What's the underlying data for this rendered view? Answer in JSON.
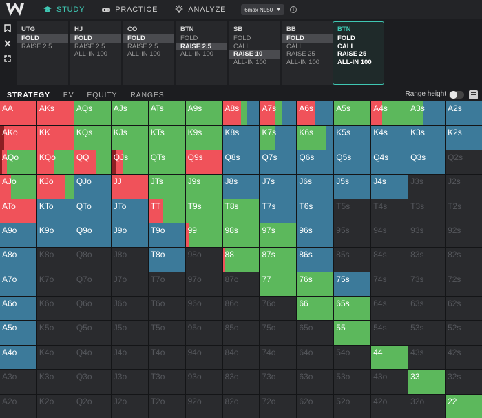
{
  "app": {
    "nav": [
      {
        "id": "study",
        "label": "STUDY",
        "icon": "graduation-cap-icon",
        "active": true
      },
      {
        "id": "practice",
        "label": "PRACTICE",
        "icon": "gamepad-icon",
        "active": false
      },
      {
        "id": "analyze",
        "label": "ANALYZE",
        "icon": "lightbulb-icon",
        "active": false
      }
    ],
    "game_select": "6max NL50"
  },
  "positions": [
    {
      "name": "UTG",
      "actions": [
        "FOLD",
        "RAISE 2.5"
      ],
      "selected": 0,
      "active": false
    },
    {
      "name": "HJ",
      "actions": [
        "FOLD",
        "RAISE 2.5",
        "ALL-IN 100"
      ],
      "selected": 0,
      "active": false
    },
    {
      "name": "CO",
      "actions": [
        "FOLD",
        "RAISE 2.5",
        "ALL-IN 100"
      ],
      "selected": 0,
      "active": false
    },
    {
      "name": "BTN",
      "actions": [
        "FOLD",
        "RAISE 2.5",
        "ALL-IN 100"
      ],
      "selected": 1,
      "active": false
    },
    {
      "name": "SB",
      "actions": [
        "FOLD",
        "CALL",
        "RAISE 10",
        "ALL-IN 100"
      ],
      "selected": 2,
      "active": false
    },
    {
      "name": "BB",
      "actions": [
        "FOLD",
        "CALL",
        "RAISE 25",
        "ALL-IN 100"
      ],
      "selected": 0,
      "active": false
    },
    {
      "name": "BTN",
      "actions": [
        "FOLD",
        "CALL",
        "RAISE 25",
        "ALL-IN 100"
      ],
      "selected": -1,
      "active": true
    }
  ],
  "tabs": [
    "STRATEGY",
    "EV",
    "EQUITY",
    "RANGES"
  ],
  "range_height_label": "Range height",
  "colors": {
    "raise": "#f0525a",
    "call": "#5cb85c",
    "fold": "#3c7a9a",
    "allin": "#8c1f23",
    "empty": "#2a2b2e"
  },
  "matrix": [
    [
      "AA",
      "AKs",
      "AQs",
      "AJs",
      "ATs",
      "A9s",
      "A8s",
      "A7s",
      "A6s",
      "A5s",
      "A4s",
      "A3s",
      "A2s"
    ],
    [
      "AKo",
      "KK",
      "KQs",
      "KJs",
      "KTs",
      "K9s",
      "K8s",
      "K7s",
      "K6s",
      "K5s",
      "K4s",
      "K3s",
      "K2s"
    ],
    [
      "AQo",
      "KQo",
      "QQ",
      "QJs",
      "QTs",
      "Q9s",
      "Q8s",
      "Q7s",
      "Q6s",
      "Q5s",
      "Q4s",
      "Q3s",
      "Q2s"
    ],
    [
      "AJo",
      "KJo",
      "QJo",
      "JJ",
      "JTs",
      "J9s",
      "J8s",
      "J7s",
      "J6s",
      "J5s",
      "J4s",
      "J3s",
      "J2s"
    ],
    [
      "ATo",
      "KTo",
      "QTo",
      "JTo",
      "TT",
      "T9s",
      "T8s",
      "T7s",
      "T6s",
      "T5s",
      "T4s",
      "T3s",
      "T2s"
    ],
    [
      "A9o",
      "K9o",
      "Q9o",
      "J9o",
      "T9o",
      "99",
      "98s",
      "97s",
      "96s",
      "95s",
      "94s",
      "93s",
      "92s"
    ],
    [
      "A8o",
      "K8o",
      "Q8o",
      "J8o",
      "T8o",
      "98o",
      "88",
      "87s",
      "86s",
      "85s",
      "84s",
      "83s",
      "82s"
    ],
    [
      "A7o",
      "K7o",
      "Q7o",
      "J7o",
      "T7o",
      "97o",
      "87o",
      "77",
      "76s",
      "75s",
      "74s",
      "73s",
      "72s"
    ],
    [
      "A6o",
      "K6o",
      "Q6o",
      "J6o",
      "T6o",
      "96o",
      "86o",
      "76o",
      "66",
      "65s",
      "64s",
      "63s",
      "62s"
    ],
    [
      "A5o",
      "K5o",
      "Q5o",
      "J5o",
      "T5o",
      "95o",
      "85o",
      "75o",
      "65o",
      "55",
      "54s",
      "53s",
      "52s"
    ],
    [
      "A4o",
      "K4o",
      "Q4o",
      "J4o",
      "T4o",
      "94o",
      "84o",
      "74o",
      "64o",
      "54o",
      "44",
      "43s",
      "42s"
    ],
    [
      "A3o",
      "K3o",
      "Q3o",
      "J3o",
      "T3o",
      "93o",
      "83o",
      "73o",
      "63o",
      "53o",
      "43o",
      "33",
      "32s"
    ],
    [
      "A2o",
      "K2o",
      "Q2o",
      "J2o",
      "T2o",
      "92o",
      "82o",
      "72o",
      "62o",
      "52o",
      "42o",
      "32o",
      "22"
    ]
  ],
  "strategy": {
    "AA": {
      "raise": 1.0
    },
    "AKs": {
      "raise": 1.0
    },
    "AQs": {
      "call": 1.0
    },
    "AJs": {
      "call": 1.0
    },
    "ATs": {
      "call": 1.0
    },
    "A9s": {
      "call": 1.0
    },
    "A8s": {
      "raise": 0.5,
      "call": 0.15,
      "fold": 0.35
    },
    "A7s": {
      "raise": 0.4,
      "call": 0.2,
      "fold": 0.4
    },
    "A6s": {
      "raise": 0.5,
      "fold": 0.5
    },
    "A5s": {
      "call": 1.0
    },
    "A4s": {
      "raise": 0.3,
      "call": 0.7
    },
    "A3s": {
      "call": 0.4,
      "fold": 0.6
    },
    "A2s": {
      "fold": 1.0
    },
    "AKo": {
      "allin": 0.12,
      "raise": 0.88
    },
    "KK": {
      "raise": 1.0
    },
    "KQs": {
      "call": 1.0
    },
    "KJs": {
      "call": 1.0
    },
    "KTs": {
      "call": 1.0
    },
    "K9s": {
      "call": 1.0
    },
    "K8s": {
      "fold": 1.0
    },
    "K7s": {
      "call": 0.4,
      "fold": 0.6
    },
    "K6s": {
      "call": 0.8,
      "fold": 0.2
    },
    "K5s": {
      "fold": 1.0
    },
    "K4s": {
      "fold": 1.0
    },
    "K3s": {
      "fold": 1.0
    },
    "K2s": {
      "fold": 1.0
    },
    "AQo": {
      "allin": 0.06,
      "raise": 0.12,
      "call": 0.82
    },
    "KQo": {
      "raise": 0.45,
      "call": 0.55
    },
    "QQ": {
      "raise": 0.6,
      "call": 0.4
    },
    "QJs": {
      "allin": 0.12,
      "raise": 0.18,
      "call": 0.7
    },
    "QTs": {
      "call": 1.0
    },
    "Q9s": {
      "raise": 1.0
    },
    "Q8s": {
      "fold": 1.0
    },
    "Q7s": {
      "fold": 1.0
    },
    "Q6s": {
      "fold": 1.0
    },
    "Q5s": {
      "fold": 1.0
    },
    "Q4s": {
      "fold": 1.0
    },
    "Q3s": {
      "fold": 1.0
    },
    "AJo": {
      "raise": 0.3,
      "call": 0.7
    },
    "KJo": {
      "raise": 0.75,
      "call": 0.25
    },
    "QJo": {
      "fold": 1.0
    },
    "JJ": {
      "raise": 1.0
    },
    "JTs": {
      "call": 1.0
    },
    "J9s": {
      "call": 1.0
    },
    "J8s": {
      "fold": 1.0
    },
    "J7s": {
      "fold": 1.0
    },
    "J6s": {
      "fold": 1.0
    },
    "J5s": {
      "fold": 1.0
    },
    "J4s": {
      "fold": 1.0
    },
    "ATo": {
      "raise": 1.0
    },
    "KTo": {
      "fold": 1.0
    },
    "QTo": {
      "fold": 1.0
    },
    "JTo": {
      "fold": 1.0
    },
    "TT": {
      "raise": 0.4,
      "call": 0.6
    },
    "T9s": {
      "call": 1.0
    },
    "T8s": {
      "call": 1.0
    },
    "T7s": {
      "fold": 1.0
    },
    "T6s": {
      "fold": 1.0
    },
    "A9o": {
      "fold": 1.0
    },
    "K9o": {
      "fold": 1.0
    },
    "Q9o": {
      "fold": 1.0
    },
    "J9o": {
      "fold": 1.0
    },
    "T9o": {
      "fold": 1.0
    },
    "99": {
      "raise": 0.08,
      "call": 0.92
    },
    "98s": {
      "call": 1.0
    },
    "97s": {
      "call": 1.0
    },
    "96s": {
      "fold": 1.0
    },
    "A8o": {
      "fold": 1.0
    },
    "T8o": {
      "fold": 1.0
    },
    "88": {
      "raise": 0.06,
      "call": 0.94
    },
    "87s": {
      "call": 1.0
    },
    "86s": {
      "fold": 1.0
    },
    "A7o": {
      "fold": 1.0
    },
    "77": {
      "call": 1.0
    },
    "76s": {
      "call": 1.0
    },
    "75s": {
      "fold": 1.0
    },
    "A6o": {
      "fold": 1.0
    },
    "66": {
      "call": 1.0
    },
    "65s": {
      "call": 1.0
    },
    "A5o": {
      "fold": 1.0
    },
    "55": {
      "call": 1.0
    },
    "A4o": {
      "fold": 1.0
    },
    "44": {
      "call": 1.0
    },
    "33": {
      "call": 1.0
    },
    "22": {
      "call": 1.0
    }
  },
  "partial_height": {
    "T5s": 0.55,
    "K8o": 0.82,
    "J8o": 0.38,
    "98o": 0.65,
    "K7o": 0.28,
    "54s": 0.42,
    "A3o": 0.42
  },
  "split_vertical": {
    "54s": {
      "call": 0.35,
      "fold": 0.65
    }
  }
}
